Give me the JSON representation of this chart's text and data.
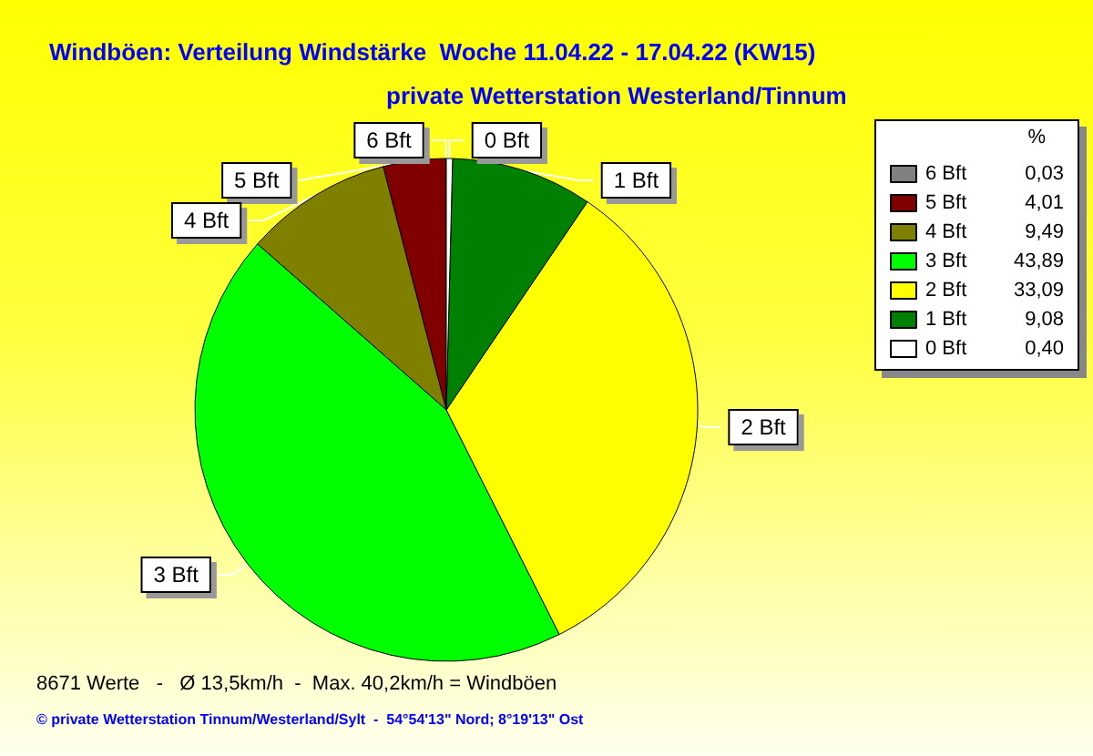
{
  "chart_data": {
    "type": "pie",
    "title": "Windböen: Verteilung Windstärke  Woche 11.04.22 - 17.04.22 (KW15)",
    "subtitle": "private Wetterstation Westerland/Tinnum",
    "categories": [
      "6 Bft",
      "5 Bft",
      "4 Bft",
      "3 Bft",
      "2 Bft",
      "1 Bft",
      "0 Bft"
    ],
    "values": [
      0.03,
      4.01,
      9.49,
      43.89,
      33.09,
      9.08,
      0.4
    ],
    "value_labels": [
      "0,03",
      "4,01",
      "9,49",
      "43,89",
      "33,09",
      "9,08",
      "0,40"
    ],
    "colors": [
      "#808080",
      "#800000",
      "#808000",
      "#00ff00",
      "#ffff00",
      "#008000",
      "#ffffff"
    ],
    "legend": "right",
    "legend_title": "%",
    "annotations": [
      "8671 Werte   -   Ø 13,5km/h  -  Max. 40,2km/h = Windböen",
      "© private Wetterstation Tinnum/Westerland/Sylt  -  54°54'13\" Nord; 8°19'13\" Ost"
    ]
  }
}
